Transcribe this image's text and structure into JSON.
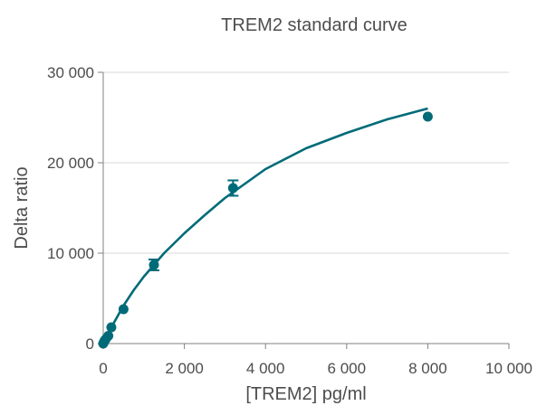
{
  "chart_data": {
    "type": "scatter",
    "title": "TREM2 standard curve",
    "xlabel": "[TREM2] pg/ml",
    "ylabel": "Delta ratio",
    "xlim": [
      0,
      10000
    ],
    "ylim": [
      0,
      30000
    ],
    "x_ticks": [
      0,
      2000,
      4000,
      6000,
      8000,
      10000
    ],
    "x_tick_labels": [
      "0",
      "2 000",
      "4 000",
      "6 000",
      "8 000",
      "10 000"
    ],
    "y_ticks": [
      0,
      10000,
      20000,
      30000
    ],
    "y_tick_labels": [
      "0",
      "10 000",
      "20 000",
      "30 000"
    ],
    "grid": {
      "horizontal": true,
      "vertical": false
    },
    "colors": {
      "series": "#006b78",
      "text": "#4d4d4d",
      "grid": "#d9d9d9",
      "axis": "#808080"
    },
    "series": [
      {
        "points": [
          {
            "x": 0,
            "y": 0,
            "err": 0
          },
          {
            "x": 16,
            "y": 150,
            "err": 0
          },
          {
            "x": 31,
            "y": 300,
            "err": 0
          },
          {
            "x": 63,
            "y": 500,
            "err": 0
          },
          {
            "x": 125,
            "y": 850,
            "err": 0
          },
          {
            "x": 200,
            "y": 1800,
            "err": 0
          },
          {
            "x": 500,
            "y": 3800,
            "err": 0
          },
          {
            "x": 1250,
            "y": 8700,
            "err": 600
          },
          {
            "x": 3200,
            "y": 17200,
            "err": 850
          },
          {
            "x": 8000,
            "y": 25100,
            "err": 0
          }
        ],
        "fit": {
          "x": [
            0,
            100,
            250,
            500,
            750,
            1000,
            1500,
            2000,
            2500,
            3000,
            3500,
            4000,
            5000,
            6000,
            7000,
            8000
          ],
          "y": [
            0,
            900,
            2200,
            4200,
            5900,
            7400,
            10000,
            12200,
            14200,
            16100,
            17700,
            19300,
            21600,
            23300,
            24800,
            26000
          ]
        }
      }
    ]
  }
}
